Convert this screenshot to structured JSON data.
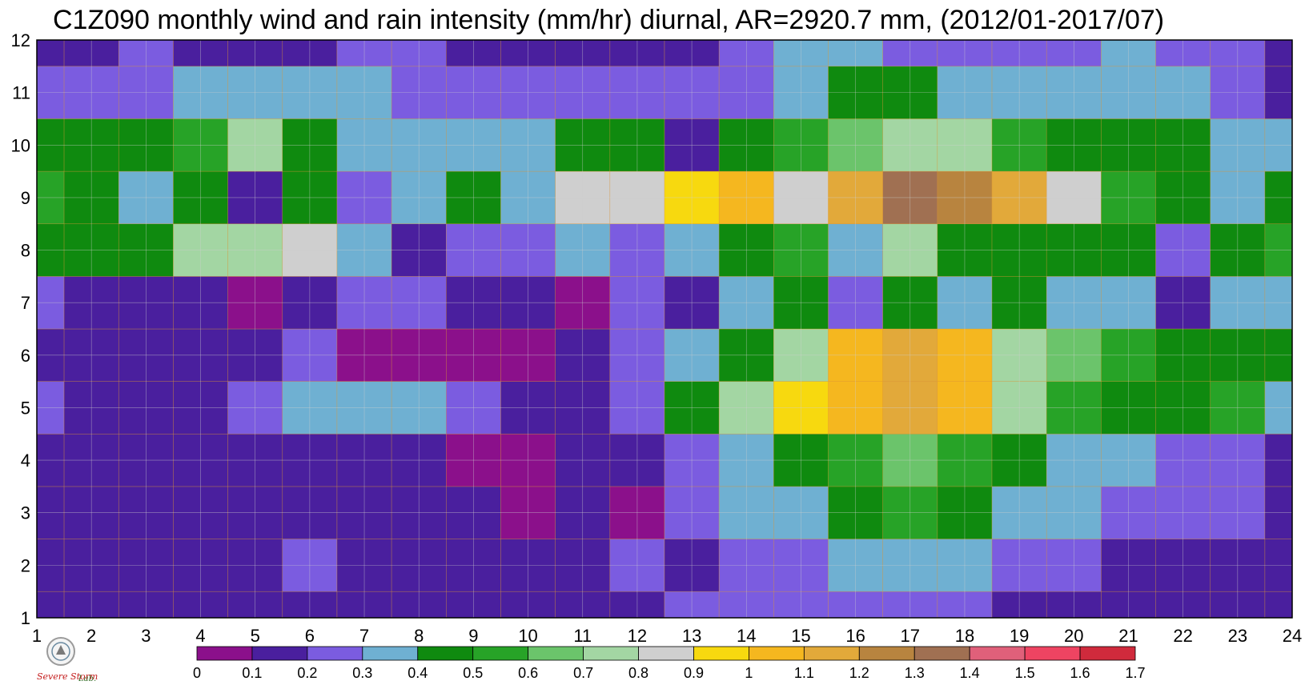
{
  "title": "C1Z090 monthly wind and rain intensity (mm/hr) diurnal, AR=2920.7 mm, (2012/01-2017/07)",
  "logo": {
    "text": "Severe Storm Lab.",
    "icon": "university-seal-icon"
  },
  "chart_data": {
    "type": "heatmap",
    "title": "C1Z090 monthly wind and rain intensity (mm/hr) diurnal, AR=2920.7 mm, (2012/01-2017/07)",
    "xlabel": "",
    "ylabel": "",
    "x": [
      1,
      2,
      3,
      4,
      5,
      6,
      7,
      8,
      9,
      10,
      11,
      12,
      13,
      14,
      15,
      16,
      17,
      18,
      19,
      20,
      21,
      22,
      23,
      24
    ],
    "y": [
      1,
      2,
      3,
      4,
      5,
      6,
      7,
      8,
      9,
      10,
      11,
      12
    ],
    "xlim": [
      1,
      24
    ],
    "ylim": [
      1,
      12
    ],
    "xticks": [
      "1",
      "2",
      "3",
      "4",
      "5",
      "6",
      "7",
      "8",
      "9",
      "10",
      "11",
      "12",
      "13",
      "14",
      "15",
      "16",
      "17",
      "18",
      "19",
      "20",
      "21",
      "22",
      "23",
      "24"
    ],
    "yticks": [
      "1",
      "2",
      "3",
      "4",
      "5",
      "6",
      "7",
      "8",
      "9",
      "10",
      "11",
      "12"
    ],
    "grid": true,
    "colorbar": {
      "position": "bottom",
      "levels": [
        0,
        0.1,
        0.2,
        0.3,
        0.4,
        0.5,
        0.6,
        0.7,
        0.8,
        0.9,
        1,
        1.1,
        1.2,
        1.3,
        1.4,
        1.5,
        1.6,
        1.7
      ],
      "labels": [
        "0",
        "0.1",
        "0.2",
        "0.3",
        "0.4",
        "0.5",
        "0.6",
        "0.7",
        "0.8",
        "0.9",
        "1",
        "1.1",
        "1.2",
        "1.3",
        "1.4",
        "1.5",
        "1.6",
        "1.7"
      ],
      "colors": [
        "#8b108b",
        "#4a1f9e",
        "#7b5ce0",
        "#6fb0d2",
        "#0f8a0f",
        "#27a327",
        "#6bc46b",
        "#a3d6a3",
        "#cfcfcf",
        "#f7d90f",
        "#f5b71f",
        "#e2a93a",
        "#b8843f",
        "#a07052",
        "#e0607a",
        "#ee4462",
        "#d02a3c"
      ]
    },
    "values": [
      [
        0.15,
        0.15,
        0.15,
        0.15,
        0.15,
        0.15,
        0.15,
        0.15,
        0.15,
        0.15,
        0.15,
        0.15,
        0.25,
        0.25,
        0.25,
        0.25,
        0.25,
        0.25,
        0.15,
        0.15,
        0.15,
        0.15,
        0.15,
        0.15
      ],
      [
        0.15,
        0.15,
        0.15,
        0.15,
        0.15,
        0.25,
        0.15,
        0.15,
        0.15,
        0.15,
        0.15,
        0.25,
        0.15,
        0.25,
        0.25,
        0.35,
        0.35,
        0.35,
        0.25,
        0.25,
        0.15,
        0.15,
        0.15,
        0.15
      ],
      [
        0.15,
        0.15,
        0.15,
        0.15,
        0.15,
        0.15,
        0.15,
        0.15,
        0.15,
        0.05,
        0.15,
        0.05,
        0.25,
        0.35,
        0.35,
        0.45,
        0.55,
        0.45,
        0.35,
        0.35,
        0.25,
        0.25,
        0.25,
        0.15
      ],
      [
        0.15,
        0.15,
        0.15,
        0.15,
        0.15,
        0.15,
        0.15,
        0.15,
        0.05,
        0.05,
        0.15,
        0.15,
        0.25,
        0.35,
        0.45,
        0.55,
        0.65,
        0.55,
        0.45,
        0.35,
        0.35,
        0.25,
        0.25,
        0.15
      ],
      [
        0.25,
        0.15,
        0.15,
        0.15,
        0.25,
        0.35,
        0.35,
        0.35,
        0.25,
        0.15,
        0.15,
        0.25,
        0.45,
        0.75,
        0.95,
        1.05,
        1.15,
        1.05,
        0.75,
        0.55,
        0.45,
        0.45,
        0.55,
        0.35
      ],
      [
        0.15,
        0.15,
        0.15,
        0.15,
        0.15,
        0.25,
        0.05,
        0.05,
        0.05,
        0.05,
        0.15,
        0.25,
        0.35,
        0.45,
        0.75,
        1.05,
        1.15,
        1.05,
        0.75,
        0.65,
        0.55,
        0.45,
        0.45,
        0.45
      ],
      [
        0.25,
        0.15,
        0.15,
        0.15,
        0.05,
        0.15,
        0.25,
        0.25,
        0.15,
        0.15,
        0.05,
        0.25,
        0.15,
        0.35,
        0.45,
        0.25,
        0.45,
        0.35,
        0.45,
        0.35,
        0.35,
        0.15,
        0.35,
        0.35
      ],
      [
        0.45,
        0.45,
        0.45,
        0.75,
        0.75,
        0.85,
        0.35,
        0.15,
        0.25,
        0.25,
        0.35,
        0.25,
        0.35,
        0.45,
        0.55,
        0.35,
        0.75,
        0.45,
        0.45,
        0.45,
        0.45,
        0.25,
        0.45,
        0.55
      ],
      [
        0.55,
        0.45,
        0.35,
        0.45,
        0.15,
        0.45,
        0.25,
        0.35,
        0.45,
        0.35,
        0.85,
        0.85,
        0.95,
        1.05,
        0.85,
        1.15,
        1.35,
        1.25,
        1.15,
        0.85,
        0.55,
        0.45,
        0.35,
        0.45
      ],
      [
        0.45,
        0.45,
        0.45,
        0.55,
        0.75,
        0.45,
        0.35,
        0.35,
        0.35,
        0.35,
        0.45,
        0.45,
        0.15,
        0.45,
        0.55,
        0.65,
        0.75,
        0.75,
        0.55,
        0.45,
        0.45,
        0.45,
        0.35,
        0.35
      ],
      [
        0.25,
        0.25,
        0.25,
        0.35,
        0.35,
        0.35,
        0.35,
        0.25,
        0.25,
        0.25,
        0.25,
        0.25,
        0.25,
        0.25,
        0.35,
        0.45,
        0.45,
        0.35,
        0.35,
        0.35,
        0.35,
        0.35,
        0.25,
        0.15
      ],
      [
        0.15,
        0.15,
        0.25,
        0.15,
        0.15,
        0.15,
        0.25,
        0.25,
        0.15,
        0.15,
        0.15,
        0.15,
        0.15,
        0.25,
        0.35,
        0.35,
        0.25,
        0.25,
        0.25,
        0.25,
        0.35,
        0.25,
        0.25,
        0.15
      ]
    ]
  }
}
